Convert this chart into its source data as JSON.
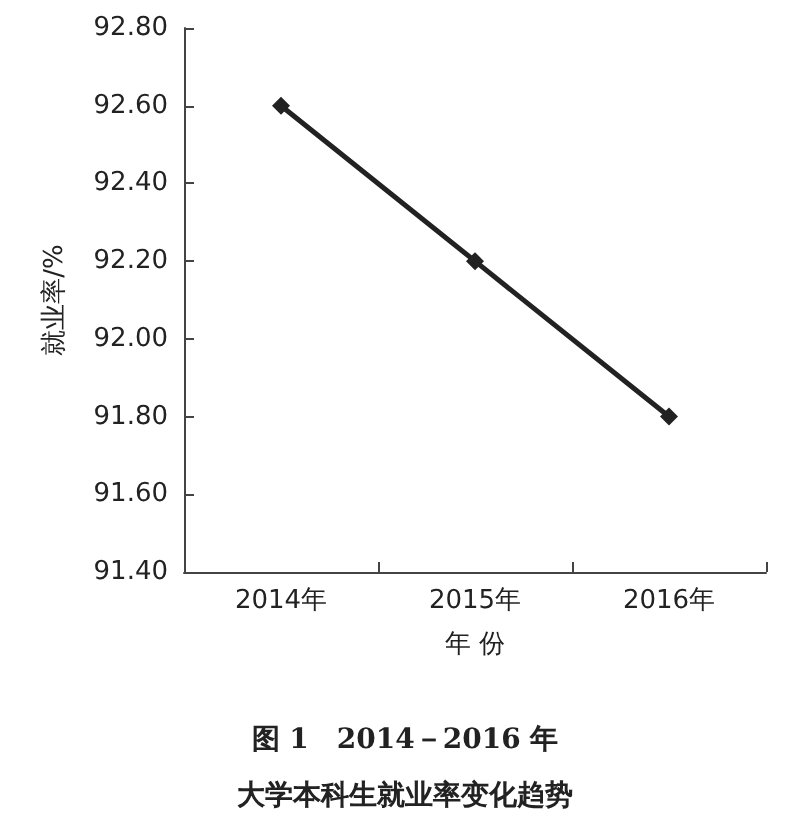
{
  "chart_data": {
    "type": "line",
    "title": "图 1　2014－2016 年",
    "subtitle": "大学本科生就业率变化趋势",
    "xlabel": "年 份",
    "ylabel": "就业率/%",
    "categories": [
      "2014年",
      "2015年",
      "2016年"
    ],
    "series": [
      {
        "color": "#222222",
        "values": [
          92.6,
          92.2,
          91.8
        ]
      }
    ],
    "ylim": [
      91.4,
      92.8
    ],
    "yticks": [
      {
        "value": 91.4,
        "label": "91.40"
      },
      {
        "value": 91.6,
        "label": "91.60"
      },
      {
        "value": 91.8,
        "label": "91.80"
      },
      {
        "value": 92.0,
        "label": "92.00"
      },
      {
        "value": 92.2,
        "label": "92.20"
      },
      {
        "value": 92.4,
        "label": "92.40"
      },
      {
        "value": 92.6,
        "label": "92.60"
      },
      {
        "value": 92.8,
        "label": "92.80"
      }
    ],
    "grid": false,
    "marker": "diamond",
    "line_style": "solid"
  }
}
